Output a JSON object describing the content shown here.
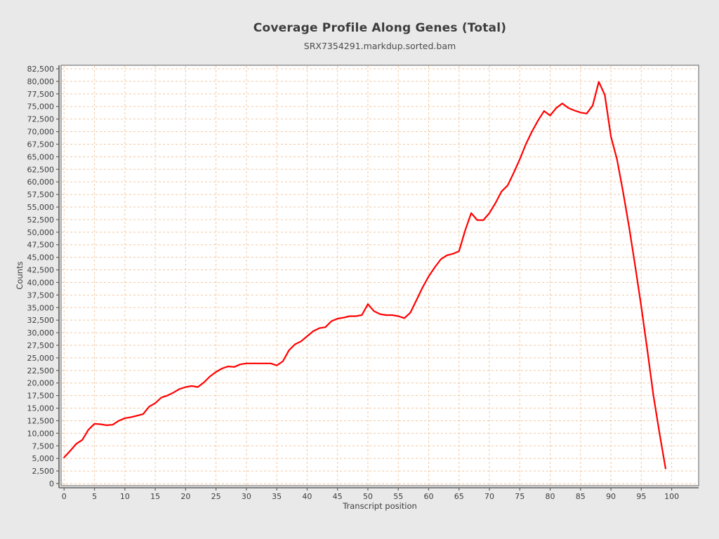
{
  "page": {
    "background": "#e9e9e9"
  },
  "header": {
    "title": "Coverage Profile Along Genes (Total)",
    "subtitle": "SRX7354291.markdup.sorted.bam"
  },
  "chart_data": {
    "type": "line",
    "title": "Coverage Profile Along Genes (Total)",
    "subtitle": "SRX7354291.markdup.sorted.bam",
    "xlabel": "Transcript position",
    "ylabel": "Counts",
    "legend_position": "none",
    "grid": {
      "visible": true,
      "style": "dashed",
      "color": "#f3c7a0"
    },
    "plot_background": "#ffffff",
    "outer_background": "#e9e9e9",
    "border_color": "#7a7a7a",
    "axis_color": "#5f5f5f",
    "tick_label_color": "#3d3d3d",
    "x_ticks": [
      0,
      5,
      10,
      15,
      20,
      25,
      30,
      35,
      40,
      45,
      50,
      55,
      60,
      65,
      70,
      75,
      80,
      85,
      90,
      95,
      100
    ],
    "y_ticks": [
      0,
      2500,
      5000,
      7500,
      10000,
      12500,
      15000,
      17500,
      20000,
      22500,
      25000,
      27500,
      30000,
      32500,
      35000,
      37500,
      40000,
      42500,
      45000,
      47500,
      50000,
      52500,
      55000,
      57500,
      60000,
      62500,
      65000,
      67500,
      70000,
      72500,
      75000,
      77500,
      80000,
      82500
    ],
    "xlim": [
      -0.5,
      104.5
    ],
    "ylim": [
      0,
      83200
    ],
    "x": [
      0,
      1,
      2,
      3,
      4,
      5,
      6,
      7,
      8,
      9,
      10,
      11,
      12,
      13,
      14,
      15,
      16,
      17,
      18,
      19,
      20,
      21,
      22,
      23,
      24,
      25,
      26,
      27,
      28,
      29,
      30,
      31,
      32,
      33,
      34,
      35,
      36,
      37,
      38,
      39,
      40,
      41,
      42,
      43,
      44,
      45,
      46,
      47,
      48,
      49,
      50,
      51,
      52,
      53,
      54,
      55,
      56,
      57,
      58,
      59,
      60,
      61,
      62,
      63,
      64,
      65,
      66,
      67,
      68,
      69,
      70,
      71,
      72,
      73,
      74,
      75,
      76,
      77,
      78,
      79,
      80,
      81,
      82,
      83,
      84,
      85,
      86,
      87,
      88,
      89,
      90,
      91,
      92,
      93,
      94,
      95,
      96,
      97,
      98,
      99
    ],
    "series": [
      {
        "name": "SRX7354291.markdup.sorted.bam",
        "color": "#ff0000",
        "values": [
          5200,
          6500,
          7900,
          8700,
          10700,
          11900,
          11800,
          11600,
          11700,
          12500,
          13000,
          13200,
          13500,
          13800,
          15300,
          16000,
          17100,
          17500,
          18100,
          18800,
          19200,
          19400,
          19200,
          20100,
          21300,
          22200,
          22900,
          23300,
          23200,
          23700,
          23900,
          23900,
          23900,
          23900,
          23900,
          23500,
          24300,
          26500,
          27700,
          28300,
          29300,
          30300,
          30900,
          31100,
          32300,
          32800,
          33000,
          33300,
          33300,
          33500,
          35700,
          34300,
          33700,
          33500,
          33500,
          33300,
          32900,
          34000,
          36500,
          39000,
          41200,
          43000,
          44600,
          45400,
          45700,
          46200,
          50300,
          53800,
          52400,
          52400,
          53800,
          55800,
          58100,
          59300,
          61800,
          64500,
          67500,
          70000,
          72200,
          74100,
          73200,
          74700,
          75600,
          74700,
          74200,
          73800,
          73600,
          75200,
          79900,
          77300,
          69000,
          64500,
          58000,
          51000,
          43200,
          35200,
          26500,
          17500,
          10000,
          3000
        ]
      }
    ]
  }
}
